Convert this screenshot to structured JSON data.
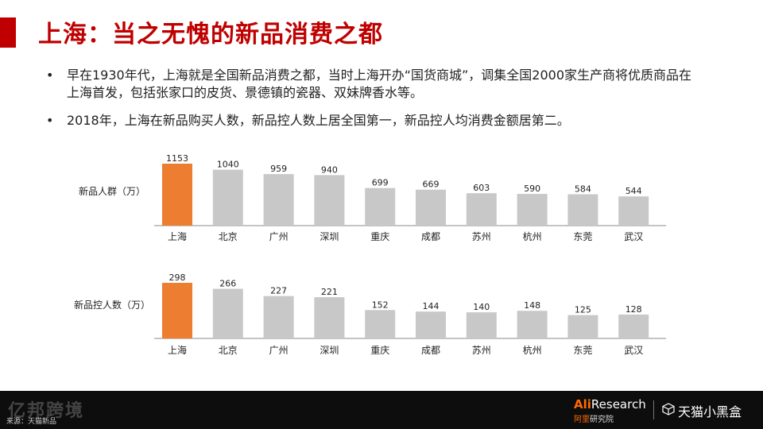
{
  "title": "上海：当之无愧的新品消费之都",
  "bullets": [
    "早在1930年代，上海就是全国新品消费之都，当时上海开办“国货商城”，调集全国2000家生产商将优质商品在上海首发，包括张家口的皮货、景德镇的瓷器、双妹牌香水等。",
    "2018年，上海在新品购买人数，新品控人数上居全国第一，新品控人均消费金额居第二。"
  ],
  "bullet_symbol": "•",
  "colors": {
    "title": "#c00000",
    "highlight": "#ed7d31",
    "bar": "#c8c8c8",
    "footer_bg": "#0d0d0d"
  },
  "chart_data": [
    {
      "type": "bar",
      "ylabel": "新品人群（万）",
      "categories": [
        "上海",
        "北京",
        "广州",
        "深圳",
        "重庆",
        "成都",
        "苏州",
        "杭州",
        "东莞",
        "武汉"
      ],
      "values": [
        1153,
        1040,
        959,
        940,
        699,
        669,
        603,
        590,
        584,
        544
      ],
      "labels": [
        "1153",
        "1040",
        "959",
        "940",
        "699",
        "669",
        "603",
        "590",
        "584",
        "544"
      ],
      "highlight_index": 0,
      "ylim": [
        0,
        1153
      ]
    },
    {
      "type": "bar",
      "ylabel": "新品控人数（万）",
      "categories": [
        "上海",
        "北京",
        "广州",
        "深圳",
        "重庆",
        "成都",
        "苏州",
        "杭州",
        "东莞",
        "武汉"
      ],
      "values": [
        298,
        266,
        227,
        221,
        152,
        144,
        140,
        148,
        125,
        128
      ],
      "labels": [
        "298",
        "266",
        "227",
        "221",
        "152",
        "144",
        "140",
        "148",
        "125",
        "128"
      ],
      "highlight_index": 0,
      "ylim": [
        0,
        298
      ]
    }
  ],
  "footer": {
    "watermark": "亿邦跨境",
    "source": "来源：天猫新品",
    "ali_prefix": "Ali",
    "ali_suffix": "Research",
    "ali_sub_cn": "阿里",
    "ali_sub": "研究院",
    "tmall": "天猫小黑盒"
  }
}
